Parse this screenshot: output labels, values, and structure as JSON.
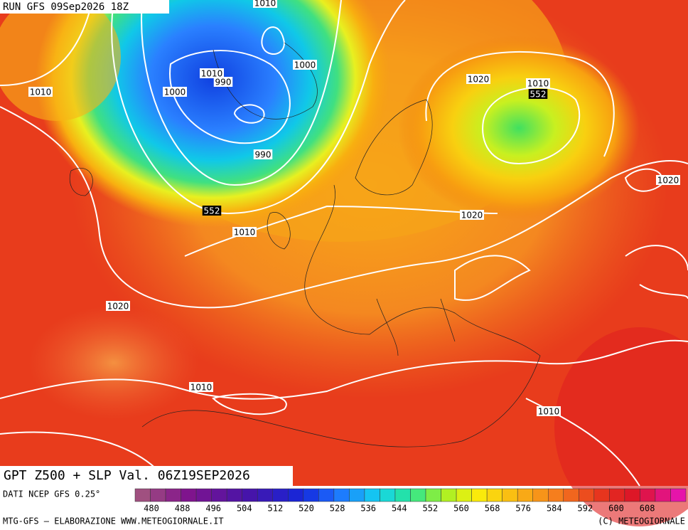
{
  "header": {
    "run": "RUN GFS 09Sep2026 18Z"
  },
  "map": {
    "contour_labels": [
      "1010",
      "1010",
      "990",
      "1000",
      "1000",
      "990",
      "1010",
      "552",
      "1010",
      "1020",
      "1010",
      "552",
      "1020",
      "1020",
      "1020",
      "1010",
      "1010"
    ]
  },
  "footer": {
    "title": "GPT Z500 + SLP Val. 06Z19SEP2026",
    "source": "DATI NCEP GFS 0.25°",
    "credit": "MTG-GFS — ELABORAZIONE WWW.METEOGIORNALE.IT",
    "copyright": "(C) METEOGIORNALE"
  },
  "colorbar": {
    "labels": [
      "480",
      "488",
      "496",
      "504",
      "512",
      "520",
      "528",
      "536",
      "544",
      "552",
      "560",
      "568",
      "576",
      "584",
      "592",
      "600",
      "608"
    ]
  }
}
